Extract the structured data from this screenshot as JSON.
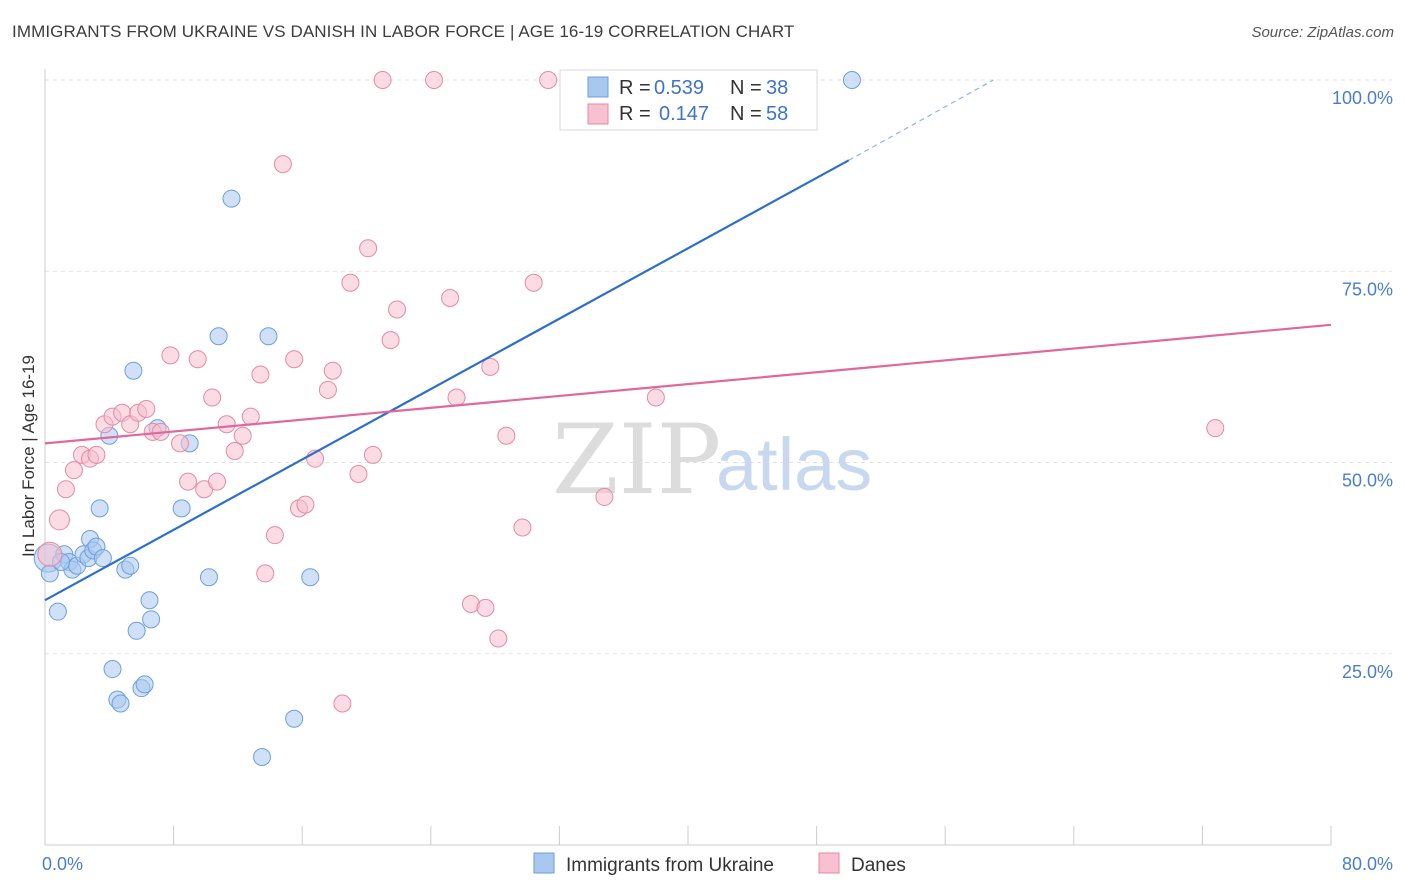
{
  "header": {
    "title": "IMMIGRANTS FROM UKRAINE VS DANISH IN LABOR FORCE | AGE 16-19 CORRELATION CHART",
    "source": "Source: ZipAtlas.com"
  },
  "watermark": {
    "zip": "ZIP",
    "atlas": "atlas"
  },
  "legend": {
    "rows": [
      {
        "r_label": "R =",
        "r_value": "0.539",
        "n_label": "N =",
        "n_value": "38",
        "color": "#a9c8f0",
        "border": "#6d9fdc"
      },
      {
        "r_label": "R =",
        "r_value": "0.147",
        "n_label": "N =",
        "n_value": "58",
        "color": "#f8c0d0",
        "border": "#e58aa6"
      }
    ]
  },
  "bottom_legend": [
    {
      "label": "Immigrants from Ukraine",
      "color": "#a9c8f0",
      "border": "#6d9fdc"
    },
    {
      "label": "Danes",
      "color": "#f8c0d0",
      "border": "#e58aa6"
    }
  ],
  "chart_data": {
    "type": "scatter",
    "title": "IMMIGRANTS FROM UKRAINE VS DANISH IN LABOR FORCE | AGE 16-19 CORRELATION CHART",
    "xlabel": "",
    "ylabel": "In Labor Force | Age 16-19",
    "xlim": [
      0,
      80
    ],
    "ylim": [
      0,
      102
    ],
    "x_tick_labels": [
      "0.0%",
      "80.0%"
    ],
    "y_ticks": [
      25,
      50,
      75,
      100
    ],
    "y_tick_labels": [
      "25.0%",
      "50.0%",
      "75.0%",
      "100.0%"
    ],
    "grid": true,
    "series": [
      {
        "name": "Immigrants from Ukraine",
        "color": "#a9c8f0",
        "line_color": "#2e6fcc",
        "regression": {
          "x0": 0,
          "y0": 32.0,
          "x1": 50,
          "y1": 89.5,
          "dash_to_x": 59,
          "dash_to_y": 100
        },
        "points": [
          [
            0.2,
            37.5
          ],
          [
            0.3,
            35.5
          ],
          [
            0.8,
            30.5
          ],
          [
            1.2,
            38.0
          ],
          [
            1.5,
            37.0
          ],
          [
            1.7,
            36.0
          ],
          [
            2.0,
            36.5
          ],
          [
            2.4,
            38.0
          ],
          [
            2.7,
            37.5
          ],
          [
            2.8,
            40.0
          ],
          [
            3.0,
            38.5
          ],
          [
            3.2,
            39.0
          ],
          [
            3.4,
            44.0
          ],
          [
            3.6,
            37.5
          ],
          [
            4.0,
            53.5
          ],
          [
            4.2,
            23.0
          ],
          [
            4.5,
            19.0
          ],
          [
            4.7,
            18.5
          ],
          [
            5.0,
            36.0
          ],
          [
            5.3,
            36.5
          ],
          [
            5.5,
            62.0
          ],
          [
            5.7,
            28.0
          ],
          [
            6.0,
            20.5
          ],
          [
            6.2,
            21.0
          ],
          [
            6.5,
            32.0
          ],
          [
            6.6,
            29.5
          ],
          [
            7.0,
            54.5
          ],
          [
            8.5,
            44.0
          ],
          [
            9.0,
            52.5
          ],
          [
            10.2,
            35.0
          ],
          [
            10.8,
            66.5
          ],
          [
            11.6,
            84.5
          ],
          [
            13.5,
            11.5
          ],
          [
            13.9,
            66.5
          ],
          [
            15.5,
            16.5
          ],
          [
            16.5,
            35.0
          ],
          [
            50.2,
            100.0
          ],
          [
            1.0,
            37.0
          ]
        ]
      },
      {
        "name": "Danes",
        "color": "#f8c0d0",
        "line_color": "#e0689a",
        "regression": {
          "x0": 0,
          "y0": 52.5,
          "x1": 80,
          "y1": 68.0
        },
        "points": [
          [
            0.3,
            38.0
          ],
          [
            0.9,
            42.5
          ],
          [
            1.3,
            46.5
          ],
          [
            1.8,
            49.0
          ],
          [
            2.3,
            51.0
          ],
          [
            2.8,
            50.5
          ],
          [
            3.2,
            51.0
          ],
          [
            3.7,
            55.0
          ],
          [
            4.2,
            56.0
          ],
          [
            4.8,
            56.5
          ],
          [
            5.3,
            55.0
          ],
          [
            5.8,
            56.5
          ],
          [
            6.3,
            57.0
          ],
          [
            6.7,
            54.0
          ],
          [
            7.2,
            54.0
          ],
          [
            7.8,
            64.0
          ],
          [
            8.4,
            52.5
          ],
          [
            8.9,
            47.5
          ],
          [
            9.5,
            63.5
          ],
          [
            9.9,
            46.5
          ],
          [
            10.4,
            58.5
          ],
          [
            10.7,
            47.5
          ],
          [
            11.3,
            55.0
          ],
          [
            11.8,
            51.5
          ],
          [
            12.3,
            53.5
          ],
          [
            12.8,
            56.0
          ],
          [
            13.4,
            61.5
          ],
          [
            13.7,
            35.5
          ],
          [
            14.3,
            40.5
          ],
          [
            14.8,
            89.0
          ],
          [
            15.5,
            63.5
          ],
          [
            15.8,
            44.0
          ],
          [
            16.2,
            44.5
          ],
          [
            16.8,
            50.5
          ],
          [
            17.6,
            59.5
          ],
          [
            17.9,
            62.0
          ],
          [
            18.5,
            18.5
          ],
          [
            19.0,
            73.5
          ],
          [
            19.5,
            48.5
          ],
          [
            20.1,
            78.0
          ],
          [
            20.4,
            51.0
          ],
          [
            21.0,
            100.0
          ],
          [
            21.5,
            66.0
          ],
          [
            21.9,
            70.0
          ],
          [
            24.2,
            100.0
          ],
          [
            25.2,
            71.5
          ],
          [
            25.6,
            58.5
          ],
          [
            26.5,
            31.5
          ],
          [
            27.4,
            31.0
          ],
          [
            27.7,
            62.5
          ],
          [
            28.2,
            27.0
          ],
          [
            28.7,
            53.5
          ],
          [
            29.7,
            41.5
          ],
          [
            30.4,
            73.5
          ],
          [
            31.3,
            100.0
          ],
          [
            34.8,
            45.5
          ],
          [
            38.0,
            58.5
          ],
          [
            72.8,
            54.5
          ]
        ]
      }
    ]
  }
}
